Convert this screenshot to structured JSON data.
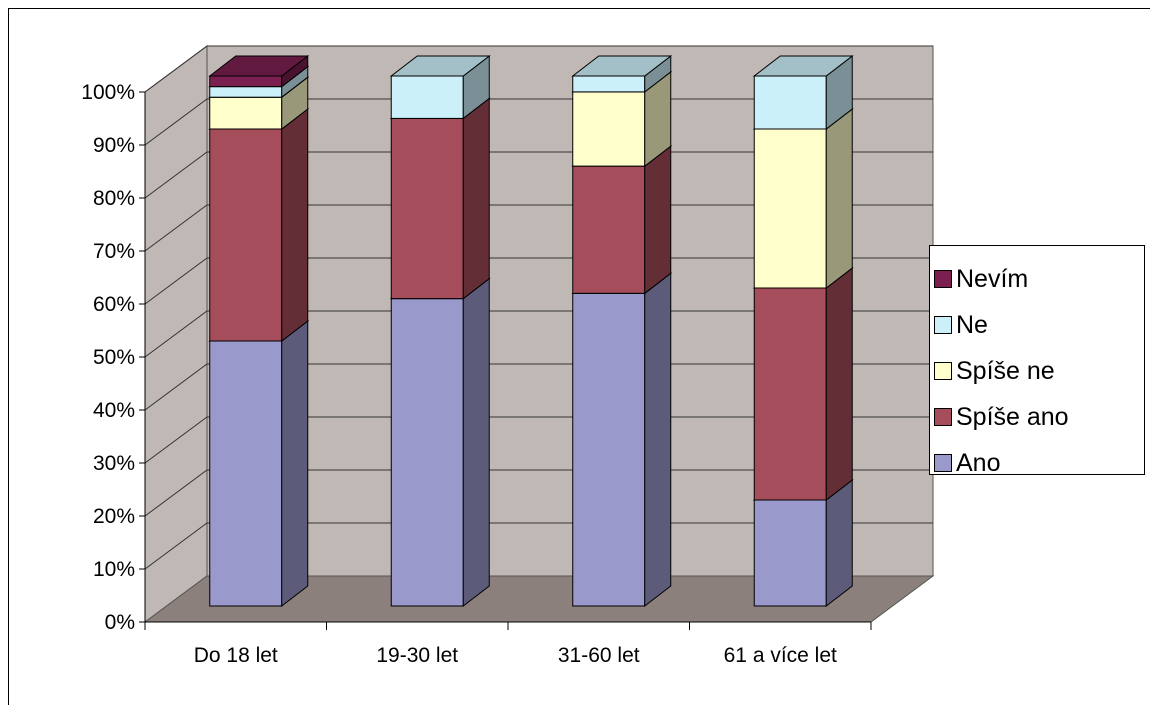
{
  "chart_data": {
    "type": "bar",
    "stacked": "percent",
    "three_d": true,
    "categories": [
      "Do 18 let",
      "19-30 let",
      "31-60 let",
      "61 a více let"
    ],
    "series": [
      {
        "name": "Ano",
        "color": "#9999cc",
        "values": [
          50,
          58,
          59,
          20
        ]
      },
      {
        "name": "Spíše ano",
        "color": "#a64d5c",
        "values": [
          40,
          34,
          24,
          40
        ]
      },
      {
        "name": "Spíše ne",
        "color": "#ffffcc",
        "values": [
          6,
          0,
          14,
          30
        ]
      },
      {
        "name": "Ne",
        "color": "#ccf0fa",
        "values": [
          2,
          8,
          3,
          10
        ]
      },
      {
        "name": "Nevím",
        "color": "#7a1f4f",
        "values": [
          2,
          0,
          0,
          0
        ]
      }
    ],
    "y_ticks": [
      "0%",
      "10%",
      "20%",
      "30%",
      "40%",
      "50%",
      "60%",
      "70%",
      "80%",
      "90%",
      "100%"
    ],
    "ylim": [
      0,
      100
    ],
    "grid": true,
    "legend_position": "right",
    "legend_order": [
      "Nevím",
      "Ne",
      "Spíše ne",
      "Spíše ano",
      "Ano"
    ],
    "wall_color": "#c0b8b4",
    "floor_color": "#8c807c"
  }
}
